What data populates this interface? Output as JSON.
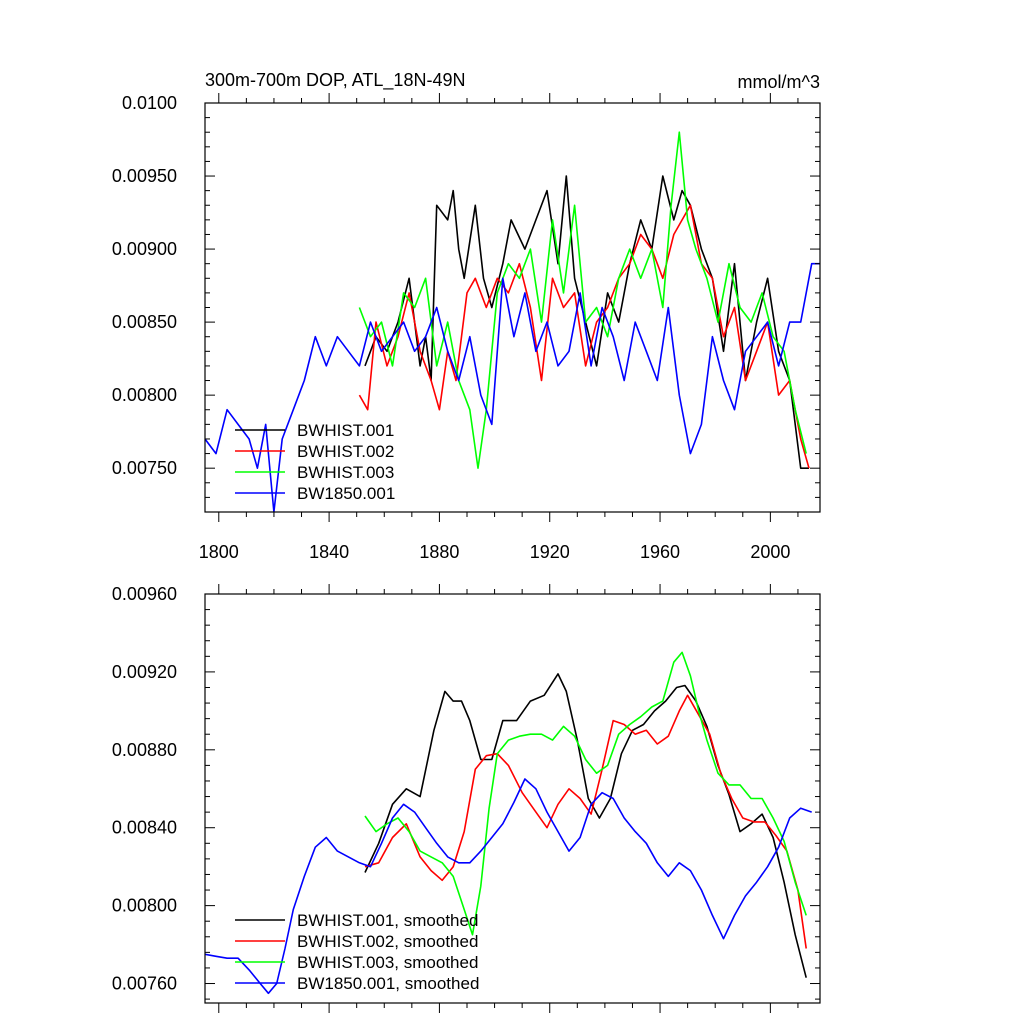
{
  "chart_data": [
    {
      "type": "line",
      "title": "300m-700m DOP, ATL_18N-49N",
      "units": "mmol/m^3",
      "xlim": [
        1795,
        2018
      ],
      "ylim": [
        0.0072,
        0.01
      ],
      "x_ticks": [
        1800,
        1840,
        1880,
        1920,
        1960,
        2000
      ],
      "x_tick_labels": [
        "1800",
        "1840",
        "1880",
        "1920",
        "1960",
        "2000"
      ],
      "y_ticks": [
        0.0075,
        0.008,
        0.0085,
        0.009,
        0.0095,
        0.01
      ],
      "y_tick_labels": [
        "0.00750",
        "0.00800",
        "0.00850",
        "0.00900",
        "0.00950",
        "0.0100"
      ],
      "legend_location": "bottom-left",
      "series": [
        {
          "name": "BWHIST.001",
          "color": "#000000",
          "x": [
            1853,
            1857,
            1861,
            1865,
            1869,
            1873,
            1875,
            1877,
            1879,
            1883,
            1885,
            1887,
            1889,
            1893,
            1896,
            1899,
            1903,
            1906,
            1911,
            1915,
            1919,
            1923,
            1926,
            1929,
            1933,
            1937,
            1941,
            1945,
            1949,
            1953,
            1957,
            1961,
            1965,
            1968,
            1971,
            1975,
            1979,
            1983,
            1987,
            1991,
            1995,
            1999,
            2003,
            2007,
            2011,
            2014
          ],
          "values": [
            0.0082,
            0.0084,
            0.0083,
            0.0085,
            0.0088,
            0.0082,
            0.0084,
            0.0081,
            0.0093,
            0.0092,
            0.0094,
            0.009,
            0.0088,
            0.0093,
            0.0088,
            0.0086,
            0.0089,
            0.0092,
            0.009,
            0.0092,
            0.0094,
            0.0089,
            0.0095,
            0.0088,
            0.0085,
            0.0082,
            0.0087,
            0.0085,
            0.0089,
            0.0092,
            0.009,
            0.0095,
            0.0092,
            0.0094,
            0.0093,
            0.009,
            0.0088,
            0.0083,
            0.0089,
            0.0081,
            0.0085,
            0.0088,
            0.0083,
            0.0081,
            0.0075,
            0.0075
          ]
        },
        {
          "name": "BWHIST.002",
          "color": "#ff0000",
          "x": [
            1851,
            1854,
            1857,
            1861,
            1865,
            1869,
            1873,
            1877,
            1880,
            1883,
            1886,
            1890,
            1893,
            1897,
            1901,
            1905,
            1909,
            1913,
            1917,
            1921,
            1925,
            1929,
            1933,
            1937,
            1941,
            1945,
            1949,
            1953,
            1957,
            1961,
            1965,
            1968,
            1971,
            1975,
            1979,
            1983,
            1987,
            1991,
            1995,
            1999,
            2003,
            2007,
            2011,
            2014
          ],
          "values": [
            0.008,
            0.0079,
            0.0085,
            0.0082,
            0.0084,
            0.0087,
            0.0083,
            0.0081,
            0.0079,
            0.0083,
            0.0081,
            0.0087,
            0.0088,
            0.0086,
            0.0088,
            0.0087,
            0.0089,
            0.0086,
            0.0081,
            0.0088,
            0.0086,
            0.0087,
            0.0082,
            0.0085,
            0.0086,
            0.0088,
            0.0089,
            0.0091,
            0.009,
            0.0088,
            0.0091,
            0.0092,
            0.0093,
            0.0089,
            0.0088,
            0.0084,
            0.0086,
            0.0081,
            0.0083,
            0.0085,
            0.008,
            0.0081,
            0.0077,
            0.0075
          ]
        },
        {
          "name": "BWHIST.003",
          "color": "#00ff00",
          "x": [
            1851,
            1855,
            1859,
            1863,
            1867,
            1871,
            1875,
            1879,
            1883,
            1887,
            1891,
            1894,
            1897,
            1901,
            1905,
            1909,
            1913,
            1917,
            1921,
            1925,
            1929,
            1933,
            1937,
            1941,
            1945,
            1949,
            1953,
            1957,
            1961,
            1964,
            1967,
            1970,
            1973,
            1977,
            1981,
            1985,
            1989,
            1993,
            1997,
            2001,
            2005,
            2009,
            2013
          ],
          "values": [
            0.0086,
            0.0084,
            0.0085,
            0.0082,
            0.0087,
            0.0086,
            0.0088,
            0.0082,
            0.0085,
            0.0081,
            0.0079,
            0.0075,
            0.0079,
            0.0087,
            0.0089,
            0.0088,
            0.009,
            0.0085,
            0.0092,
            0.0087,
            0.0093,
            0.0085,
            0.0086,
            0.0084,
            0.0088,
            0.009,
            0.0088,
            0.009,
            0.0086,
            0.0093,
            0.0098,
            0.0092,
            0.009,
            0.0088,
            0.0085,
            0.0089,
            0.0086,
            0.0085,
            0.0087,
            0.0084,
            0.0083,
            0.0079,
            0.0076
          ]
        },
        {
          "name": "BW1850.001",
          "color": "#0000ff",
          "x": [
            1795,
            1799,
            1803,
            1807,
            1811,
            1814,
            1817,
            1820,
            1823,
            1827,
            1831,
            1835,
            1839,
            1843,
            1847,
            1851,
            1855,
            1859,
            1863,
            1867,
            1871,
            1875,
            1879,
            1883,
            1887,
            1891,
            1895,
            1899,
            1903,
            1907,
            1911,
            1915,
            1919,
            1923,
            1927,
            1931,
            1935,
            1939,
            1943,
            1947,
            1951,
            1955,
            1959,
            1963,
            1967,
            1971,
            1975,
            1979,
            1983,
            1987,
            1991,
            1995,
            1999,
            2003,
            2007,
            2011,
            2015,
            2018
          ],
          "values": [
            0.0077,
            0.0076,
            0.0079,
            0.0078,
            0.0077,
            0.0075,
            0.0078,
            0.0072,
            0.0077,
            0.0079,
            0.0081,
            0.0084,
            0.0082,
            0.0084,
            0.0083,
            0.0082,
            0.0085,
            0.0083,
            0.0084,
            0.0085,
            0.0083,
            0.0084,
            0.0086,
            0.0083,
            0.0081,
            0.0084,
            0.008,
            0.0078,
            0.0088,
            0.0084,
            0.0087,
            0.0083,
            0.0085,
            0.0082,
            0.0083,
            0.0087,
            0.0082,
            0.0086,
            0.0084,
            0.0081,
            0.0085,
            0.0083,
            0.0081,
            0.0086,
            0.008,
            0.0076,
            0.0078,
            0.0084,
            0.0081,
            0.0079,
            0.0083,
            0.0084,
            0.0085,
            0.0082,
            0.0085,
            0.0085,
            0.0089,
            0.0089
          ]
        }
      ]
    },
    {
      "type": "line",
      "title": "",
      "xlim": [
        1795,
        2018
      ],
      "ylim": [
        0.0075,
        0.0096
      ],
      "x_ticks": [
        1800,
        1840,
        1880,
        1920,
        1960,
        2000
      ],
      "x_tick_labels": [],
      "y_ticks": [
        0.0076,
        0.008,
        0.0084,
        0.0088,
        0.0092,
        0.0096
      ],
      "y_tick_labels": [
        "0.00760",
        "0.00800",
        "0.00840",
        "0.00880",
        "0.00920",
        "0.00960"
      ],
      "legend_location": "bottom-left",
      "series": [
        {
          "name": "BWHIST.001, smoothed",
          "color": "#000000",
          "x": [
            1853,
            1858,
            1863,
            1868,
            1873,
            1878,
            1882,
            1885,
            1888,
            1891,
            1895,
            1899,
            1903,
            1908,
            1913,
            1918,
            1923,
            1926,
            1930,
            1934,
            1938,
            1942,
            1946,
            1950,
            1954,
            1958,
            1962,
            1966,
            1969,
            1973,
            1977,
            1981,
            1985,
            1989,
            1993,
            1997,
            2001,
            2005,
            2009,
            2013
          ],
          "values": [
            0.00817,
            0.00832,
            0.00852,
            0.0086,
            0.00856,
            0.0089,
            0.0091,
            0.00905,
            0.00905,
            0.00895,
            0.00875,
            0.00875,
            0.00895,
            0.00895,
            0.00905,
            0.00908,
            0.00919,
            0.0091,
            0.00885,
            0.00855,
            0.00845,
            0.00855,
            0.00878,
            0.0089,
            0.00893,
            0.009,
            0.00905,
            0.00912,
            0.00913,
            0.00905,
            0.00892,
            0.00872,
            0.00857,
            0.00838,
            0.00842,
            0.00847,
            0.00835,
            0.00812,
            0.00785,
            0.00763
          ]
        },
        {
          "name": "BWHIST.002, smoothed",
          "color": "#ff0000",
          "x": [
            1853,
            1858,
            1863,
            1868,
            1873,
            1877,
            1881,
            1885,
            1889,
            1893,
            1897,
            1901,
            1905,
            1910,
            1915,
            1919,
            1923,
            1927,
            1931,
            1935,
            1939,
            1943,
            1947,
            1951,
            1955,
            1959,
            1963,
            1967,
            1970,
            1974,
            1978,
            1982,
            1986,
            1990,
            1994,
            1998,
            2002,
            2006,
            2010,
            2013
          ],
          "values": [
            0.0082,
            0.00822,
            0.00835,
            0.00842,
            0.00825,
            0.00818,
            0.00813,
            0.0082,
            0.00838,
            0.0087,
            0.00877,
            0.00878,
            0.00872,
            0.00858,
            0.00848,
            0.0084,
            0.00852,
            0.0086,
            0.00855,
            0.00847,
            0.0087,
            0.00895,
            0.00893,
            0.00888,
            0.0089,
            0.00883,
            0.00887,
            0.009,
            0.00908,
            0.00898,
            0.00888,
            0.00868,
            0.00855,
            0.00845,
            0.00843,
            0.00843,
            0.00836,
            0.00828,
            0.00808,
            0.00778
          ]
        },
        {
          "name": "BWHIST.003, smoothed",
          "color": "#00ff00",
          "x": [
            1853,
            1857,
            1861,
            1865,
            1869,
            1873,
            1877,
            1881,
            1885,
            1889,
            1892,
            1895,
            1898,
            1901,
            1905,
            1909,
            1913,
            1917,
            1921,
            1925,
            1929,
            1933,
            1937,
            1941,
            1945,
            1949,
            1953,
            1957,
            1961,
            1965,
            1968,
            1971,
            1974,
            1977,
            1981,
            1985,
            1989,
            1993,
            1997,
            2001,
            2005,
            2009,
            2013
          ],
          "values": [
            0.00846,
            0.00838,
            0.00842,
            0.00845,
            0.00838,
            0.00828,
            0.00825,
            0.00822,
            0.00815,
            0.00798,
            0.00785,
            0.0081,
            0.0085,
            0.00878,
            0.00885,
            0.00887,
            0.00888,
            0.00888,
            0.00885,
            0.00892,
            0.00887,
            0.00875,
            0.00868,
            0.00872,
            0.00888,
            0.00893,
            0.00897,
            0.00902,
            0.00905,
            0.00925,
            0.0093,
            0.00918,
            0.009,
            0.00885,
            0.00868,
            0.00862,
            0.00862,
            0.00855,
            0.00855,
            0.00845,
            0.00833,
            0.00812,
            0.00795
          ]
        },
        {
          "name": "BW1850.001, smoothed",
          "color": "#0000ff",
          "x": [
            1795,
            1799,
            1803,
            1807,
            1811,
            1815,
            1818,
            1821,
            1824,
            1827,
            1831,
            1835,
            1839,
            1843,
            1847,
            1851,
            1855,
            1859,
            1863,
            1867,
            1871,
            1875,
            1879,
            1883,
            1887,
            1891,
            1895,
            1899,
            1903,
            1907,
            1911,
            1915,
            1919,
            1923,
            1927,
            1931,
            1935,
            1939,
            1943,
            1947,
            1951,
            1955,
            1959,
            1963,
            1967,
            1971,
            1975,
            1979,
            1983,
            1987,
            1991,
            1995,
            1999,
            2003,
            2007,
            2011,
            2015
          ],
          "values": [
            0.00775,
            0.00774,
            0.00773,
            0.00773,
            0.00767,
            0.0076,
            0.00755,
            0.0076,
            0.00778,
            0.00798,
            0.00815,
            0.0083,
            0.00835,
            0.00828,
            0.00825,
            0.00822,
            0.0082,
            0.00832,
            0.00845,
            0.00852,
            0.00848,
            0.0084,
            0.00832,
            0.00825,
            0.00822,
            0.00822,
            0.00828,
            0.00835,
            0.00842,
            0.00853,
            0.00865,
            0.0086,
            0.00848,
            0.00838,
            0.00828,
            0.00835,
            0.00852,
            0.00858,
            0.00855,
            0.00845,
            0.00838,
            0.00832,
            0.00822,
            0.00815,
            0.00822,
            0.00818,
            0.00808,
            0.00795,
            0.00783,
            0.00795,
            0.00805,
            0.00812,
            0.0082,
            0.0083,
            0.00845,
            0.0085,
            0.00848
          ]
        }
      ]
    }
  ]
}
